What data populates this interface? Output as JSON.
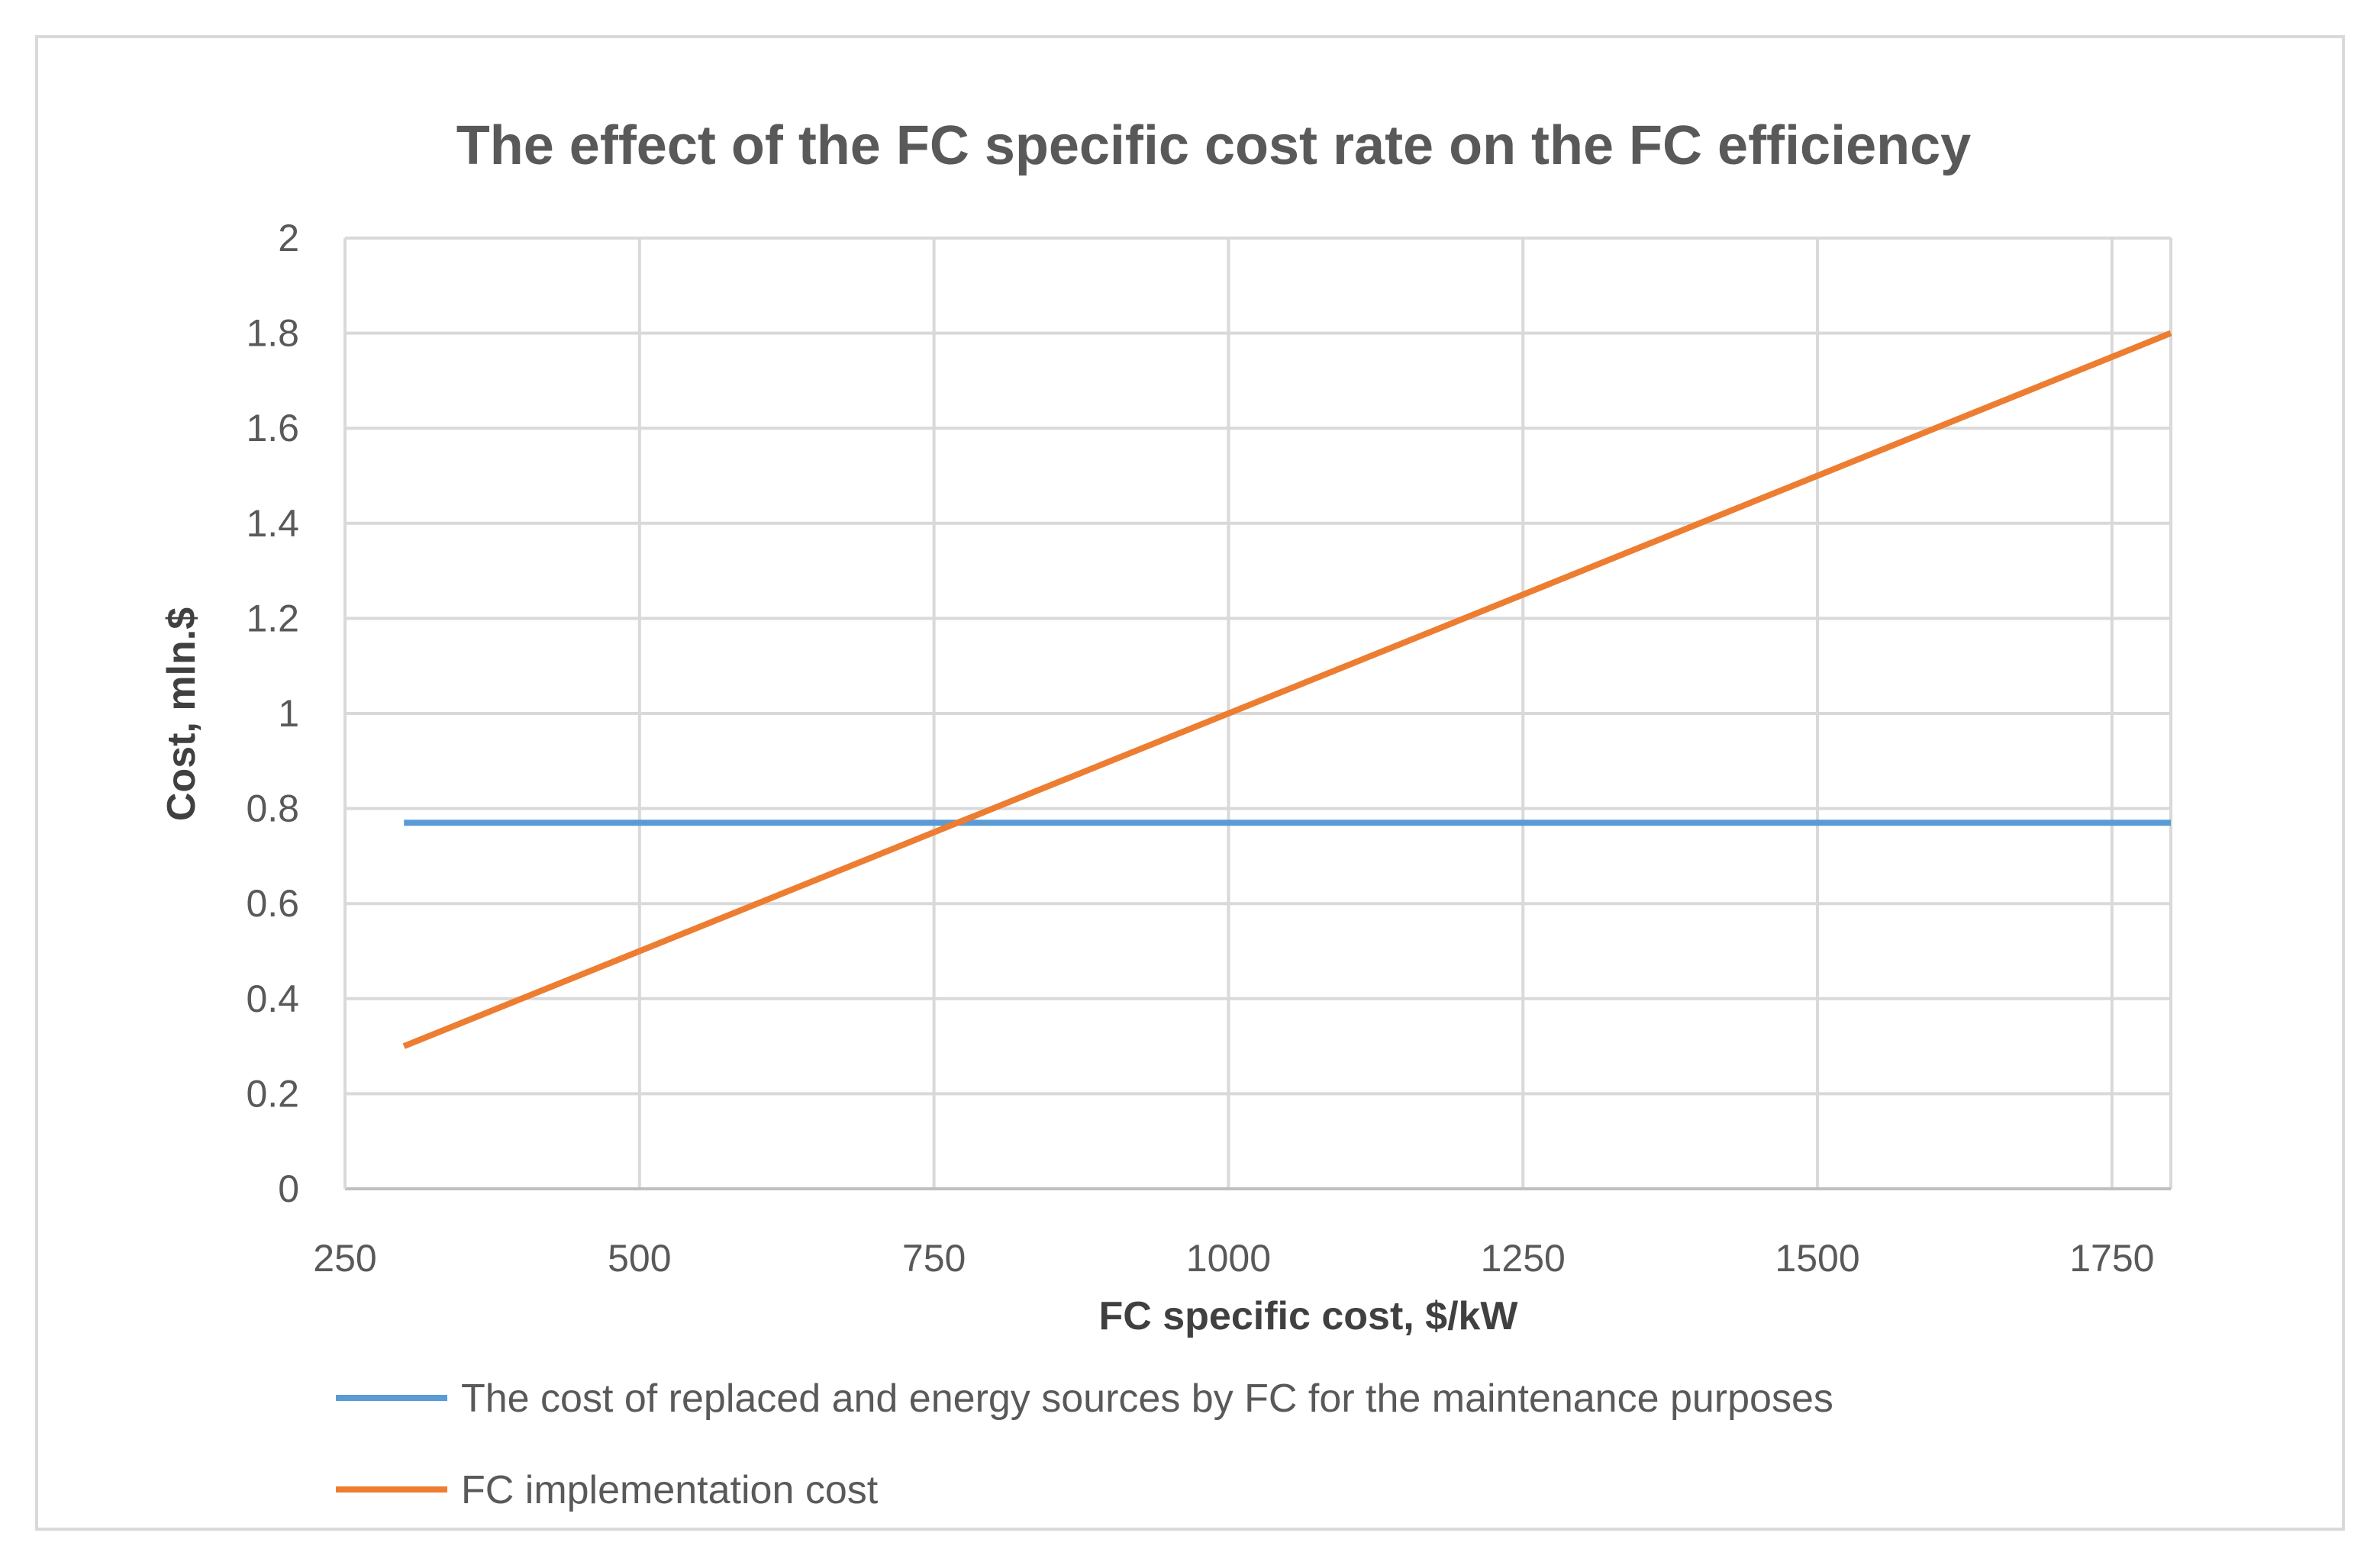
{
  "chart_data": {
    "type": "line",
    "title": "The effect of the FC specific cost rate on the FC efficiency",
    "xlabel": "FC specific cost, $/kW",
    "ylabel": "Cost, mln.$",
    "xlim": [
      250,
      1800
    ],
    "ylim": [
      0,
      2
    ],
    "xticks": [
      250,
      500,
      750,
      1000,
      1250,
      1500,
      1750
    ],
    "yticks": [
      0,
      0.2,
      0.4,
      0.6,
      0.8,
      1,
      1.2,
      1.4,
      1.6,
      1.8,
      2
    ],
    "grid": true,
    "legend_position": "bottom",
    "series": [
      {
        "name": "The cost of replaced and energy sources by FC for the maintenance purposes",
        "color": "#5b9bd5",
        "x": [
          300,
          1800
        ],
        "y": [
          0.77,
          0.77
        ]
      },
      {
        "name": "FC implementation cost",
        "color": "#ed7d31",
        "x": [
          300,
          1800
        ],
        "y": [
          0.3,
          1.8
        ]
      }
    ]
  }
}
